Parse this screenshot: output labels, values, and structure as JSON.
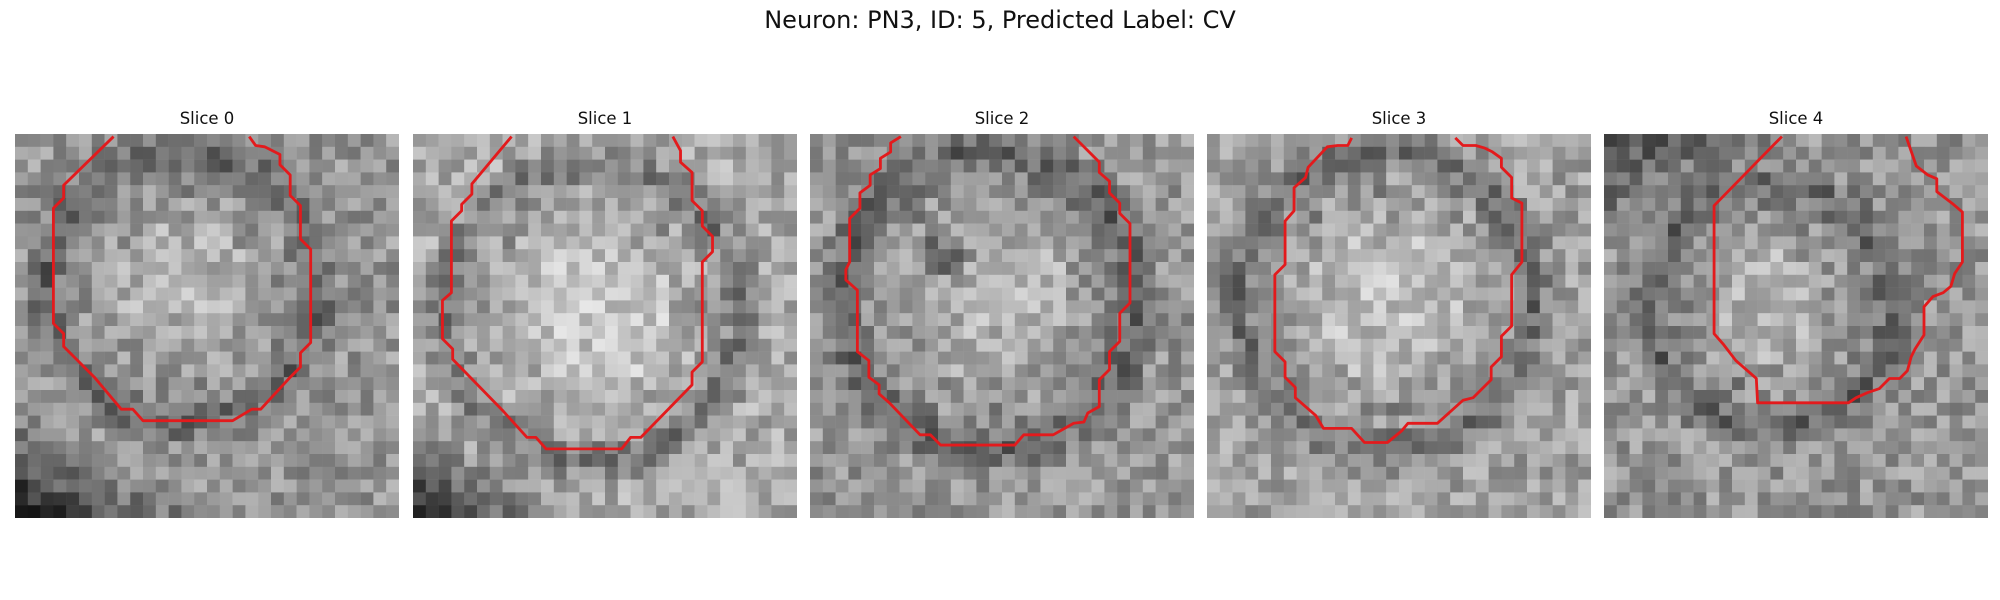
{
  "title": "Neuron: PN3, ID: 5, Predicted Label: CV",
  "colors": {
    "contour": "#e31a1c",
    "background": "#ffffff"
  },
  "slices": [
    {
      "label": "Slice 0"
    },
    {
      "label": "Slice 1"
    },
    {
      "label": "Slice 2"
    },
    {
      "label": "Slice 3"
    },
    {
      "label": "Slice 4"
    }
  ]
}
